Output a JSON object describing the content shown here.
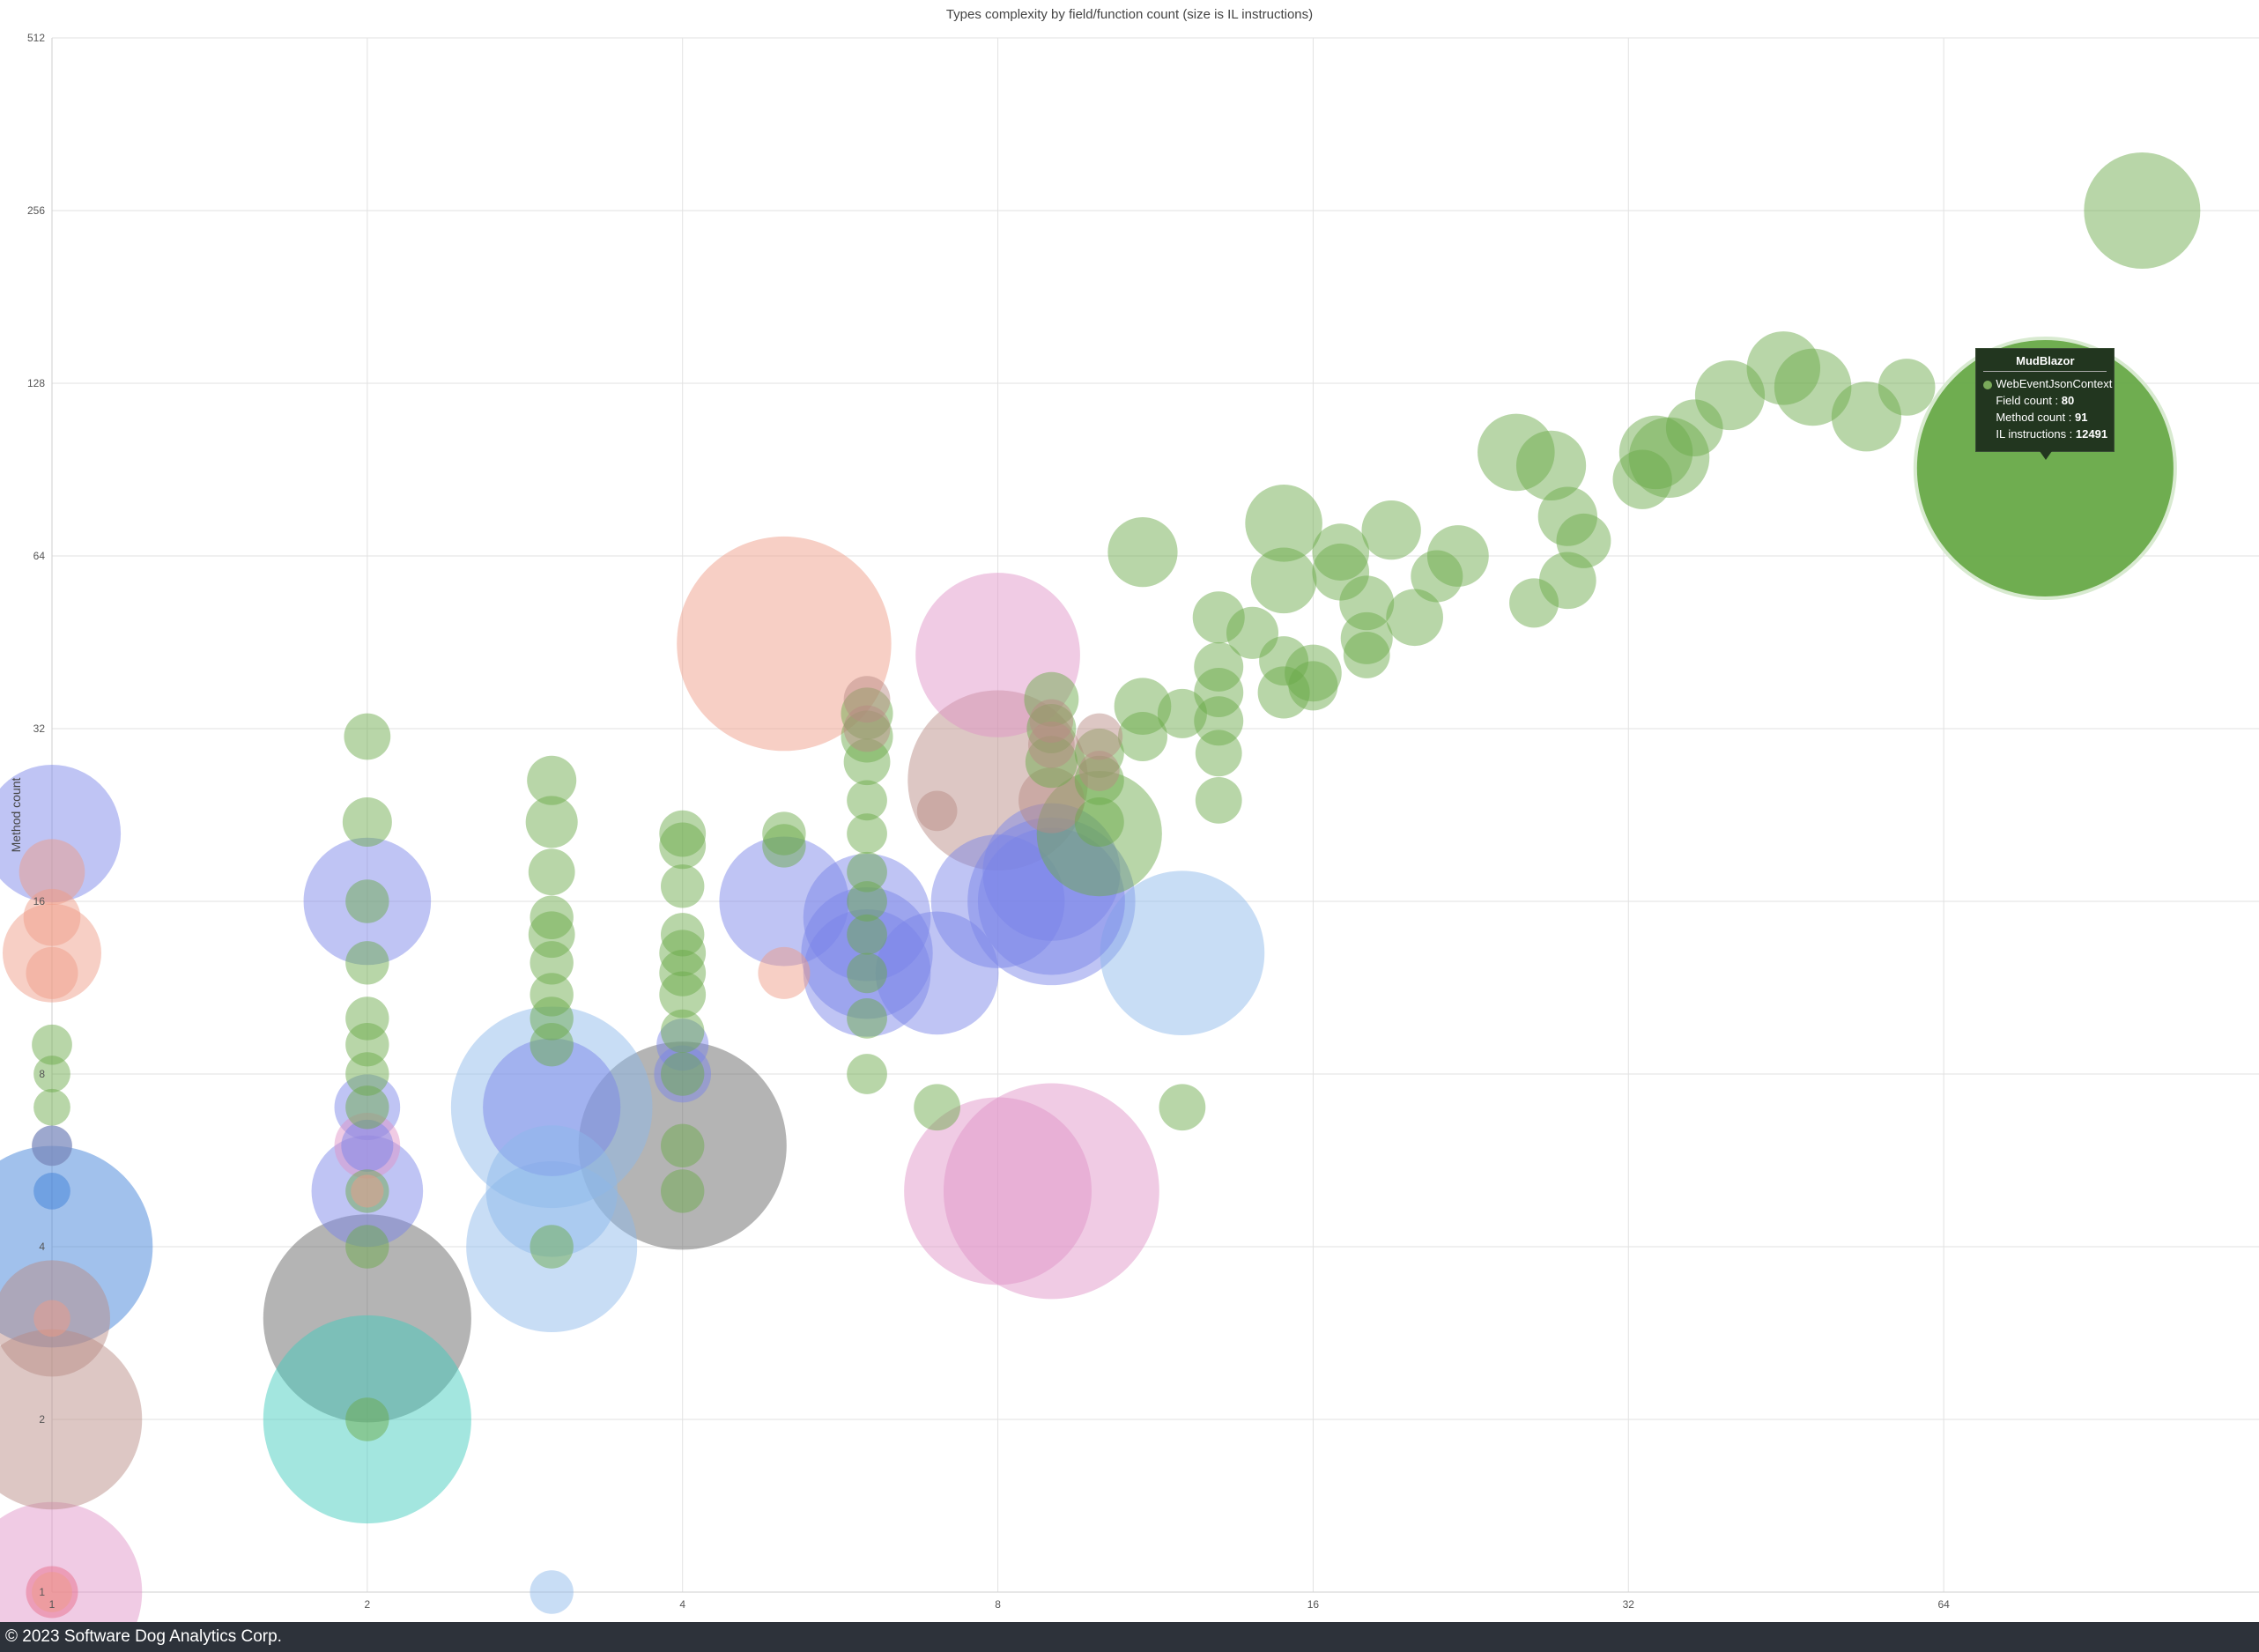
{
  "chart_data": {
    "type": "scatter",
    "title": "Types complexity by field/function count (size is IL instructions)",
    "xlabel": "",
    "ylabel": "Method count",
    "x_scale": "log2",
    "y_scale": "log2",
    "xlim": [
      1,
      128
    ],
    "ylim": [
      1,
      512
    ],
    "x_ticks": [
      "1",
      "2",
      "4",
      "8",
      "16",
      "32",
      "64"
    ],
    "y_ticks": [
      "1",
      "2",
      "4",
      "8",
      "16",
      "32",
      "64",
      "128",
      "256",
      "512"
    ],
    "grid": true,
    "tooltip": {
      "title": "MudBlazor",
      "series": "WebEventJsonContext",
      "rows": [
        {
          "label": "Field count : ",
          "value": "80"
        },
        {
          "label": "Method count : ",
          "value": "91"
        },
        {
          "label": "IL instructions : ",
          "value": "12491"
        }
      ]
    },
    "series": [
      {
        "color": "#6aaa4a",
        "points": [
          [
            99,
            256,
            2500
          ],
          [
            80,
            91,
            12491
          ],
          [
            59,
            126,
            600
          ],
          [
            54,
            112,
            900
          ],
          [
            48,
            126,
            1100
          ],
          [
            45,
            136,
            1000
          ],
          [
            40,
            122,
            900
          ],
          [
            37,
            107,
            600
          ],
          [
            34,
            97,
            1000
          ],
          [
            33,
            87,
            650
          ],
          [
            35,
            95,
            1200
          ],
          [
            27,
            92,
            900
          ],
          [
            25,
            97,
            1100
          ],
          [
            28,
            75,
            650
          ],
          [
            29,
            68,
            550
          ],
          [
            28,
            58,
            600
          ],
          [
            26,
            53,
            450
          ],
          [
            22,
            64,
            700
          ],
          [
            21,
            59,
            500
          ],
          [
            20,
            50,
            600
          ],
          [
            19,
            71,
            650
          ],
          [
            17,
            65,
            600
          ],
          [
            17,
            60,
            600
          ],
          [
            18,
            53,
            550
          ],
          [
            18,
            46,
            500
          ],
          [
            18,
            43,
            400
          ],
          [
            16,
            40,
            600
          ],
          [
            16,
            38,
            450
          ],
          [
            15,
            73,
            1100
          ],
          [
            15,
            58,
            800
          ],
          [
            15,
            42,
            450
          ],
          [
            15,
            37,
            500
          ],
          [
            14,
            47,
            500
          ],
          [
            13,
            50,
            500
          ],
          [
            13,
            41,
            450
          ],
          [
            13,
            37,
            450
          ],
          [
            13,
            33,
            450
          ],
          [
            13,
            29,
            400
          ],
          [
            13,
            24,
            400
          ],
          [
            12,
            34,
            450
          ],
          [
            11,
            65,
            900
          ],
          [
            11,
            35,
            600
          ],
          [
            11,
            31,
            450
          ],
          [
            10,
            21,
            2900
          ],
          [
            12,
            7,
            400
          ],
          [
            10,
            29,
            450
          ],
          [
            10,
            26,
            450
          ],
          [
            10,
            22,
            450
          ],
          [
            9,
            36,
            550
          ],
          [
            9,
            32,
            450
          ],
          [
            9,
            28,
            500
          ],
          [
            6,
            34,
            500
          ],
          [
            6,
            31,
            500
          ],
          [
            6,
            28,
            400
          ],
          [
            6,
            24,
            300
          ],
          [
            6,
            21,
            300
          ],
          [
            6,
            18,
            300
          ],
          [
            6,
            16,
            300
          ],
          [
            6,
            14,
            300
          ],
          [
            6,
            12,
            300
          ],
          [
            6,
            10,
            300
          ],
          [
            6,
            8,
            300
          ],
          [
            7,
            7,
            400
          ],
          [
            5,
            21,
            350
          ],
          [
            5,
            20,
            350
          ],
          [
            4,
            21,
            400
          ],
          [
            4,
            20,
            400
          ],
          [
            4,
            17,
            350
          ],
          [
            4,
            14,
            350
          ],
          [
            4,
            13,
            400
          ],
          [
            4,
            12,
            400
          ],
          [
            4,
            11,
            400
          ],
          [
            4,
            9.5,
            350
          ],
          [
            4,
            8,
            350
          ],
          [
            4,
            6,
            350
          ],
          [
            4,
            5,
            350
          ],
          [
            3,
            26,
            450
          ],
          [
            3,
            22,
            500
          ],
          [
            3,
            18,
            400
          ],
          [
            3,
            15,
            350
          ],
          [
            3,
            14,
            400
          ],
          [
            3,
            12.5,
            350
          ],
          [
            3,
            11,
            350
          ],
          [
            3,
            10,
            350
          ],
          [
            3,
            9,
            350
          ],
          [
            3,
            4,
            350
          ],
          [
            2,
            31,
            400
          ],
          [
            2,
            22,
            450
          ],
          [
            2,
            16,
            350
          ],
          [
            2,
            12.5,
            350
          ],
          [
            2,
            10,
            350
          ],
          [
            2,
            9,
            350
          ],
          [
            2,
            8,
            350
          ],
          [
            2,
            7,
            350
          ],
          [
            2,
            5,
            350
          ],
          [
            2,
            4,
            350
          ],
          [
            2,
            2,
            350
          ],
          [
            1,
            9,
            300
          ],
          [
            1,
            8,
            250
          ],
          [
            1,
            7,
            250
          ]
        ]
      },
      {
        "color": "#7a84e8",
        "points": [
          [
            1,
            21,
            3500
          ],
          [
            2,
            16,
            3000
          ],
          [
            3,
            7,
            3500
          ],
          [
            4,
            8,
            600
          ],
          [
            4,
            9,
            500
          ],
          [
            5,
            16,
            3100
          ],
          [
            6,
            15,
            3000
          ],
          [
            6,
            13,
            3200
          ],
          [
            6,
            12,
            3000
          ],
          [
            7,
            12,
            2800
          ],
          [
            8,
            16,
            3300
          ],
          [
            9,
            16,
            5200
          ],
          [
            9,
            16,
            4000
          ],
          [
            9,
            18,
            3500
          ],
          [
            2,
            7,
            800
          ],
          [
            2,
            5,
            2300
          ],
          [
            2,
            6,
            500
          ]
        ]
      },
      {
        "color": "#8bb8ea",
        "points": [
          [
            3,
            7,
            7500
          ],
          [
            3,
            4,
            5400
          ],
          [
            3,
            5,
            3200
          ],
          [
            12,
            13,
            5000
          ],
          [
            3,
            1,
            350
          ]
        ]
      },
      {
        "color": "#ef9a85",
        "points": [
          [
            5,
            45,
            8500
          ],
          [
            1,
            13,
            1800
          ],
          [
            1,
            18,
            800
          ],
          [
            1,
            15,
            600
          ],
          [
            1,
            12,
            500
          ],
          [
            5,
            12,
            500
          ],
          [
            1,
            6,
            300
          ],
          [
            2,
            5,
            200
          ],
          [
            1,
            3,
            250
          ],
          [
            1,
            1,
            300
          ]
        ]
      },
      {
        "color": "#e092c6",
        "points": [
          [
            8,
            43,
            5000
          ],
          [
            9,
            5,
            8600
          ],
          [
            8,
            5,
            6500
          ],
          [
            1,
            1,
            6000
          ],
          [
            2,
            6,
            800
          ]
        ]
      },
      {
        "color": "#b88a84",
        "points": [
          [
            1,
            2,
            6000
          ],
          [
            1,
            3,
            2500
          ],
          [
            8,
            26,
            6000
          ],
          [
            9,
            24,
            800
          ],
          [
            9,
            30,
            400
          ],
          [
            9,
            33,
            350
          ],
          [
            10,
            31,
            400
          ],
          [
            10,
            27,
            300
          ],
          [
            7,
            23,
            300
          ],
          [
            6,
            36,
            400
          ],
          [
            6,
            32,
            400
          ]
        ]
      },
      {
        "color": "#626262",
        "points": [
          [
            4,
            6,
            8000
          ],
          [
            2,
            3,
            8000
          ]
        ]
      },
      {
        "color": "#3a7ed8",
        "points": [
          [
            1,
            4,
            7500
          ],
          [
            1,
            6,
            300
          ],
          [
            1,
            5,
            250
          ]
        ]
      },
      {
        "color": "#3ecbbd",
        "points": [
          [
            2,
            2,
            8000
          ]
        ]
      },
      {
        "color": "#e86a88",
        "points": [
          [
            1,
            1,
            500
          ]
        ]
      }
    ]
  },
  "footer": {
    "copyright": "© 2023 Software Dog Analytics Corp."
  }
}
